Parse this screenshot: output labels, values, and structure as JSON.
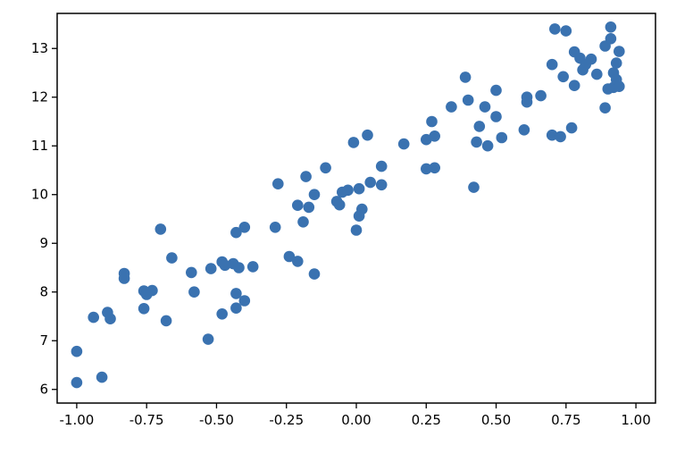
{
  "chart_data": {
    "type": "scatter",
    "title": "",
    "xlabel": "",
    "ylabel": "",
    "xlim": [
      -1.07,
      1.07
    ],
    "ylim": [
      5.72,
      13.72
    ],
    "grid": false,
    "legend": "none",
    "marker_color": "#3a72b0",
    "x_ticks": [
      -1.0,
      -0.75,
      -0.5,
      -0.25,
      0.0,
      0.25,
      0.5,
      0.75,
      1.0
    ],
    "x_tick_labels": [
      "-1.00",
      "-0.75",
      "-0.50",
      "-0.25",
      "0.00",
      "0.25",
      "0.50",
      "0.75",
      "1.00"
    ],
    "y_ticks": [
      6,
      7,
      8,
      9,
      10,
      11,
      12,
      13
    ],
    "y_tick_labels": [
      "6",
      "7",
      "8",
      "9",
      "10",
      "11",
      "12",
      "13"
    ],
    "series": [
      {
        "points": [
          [
            -1.0,
            6.78
          ],
          [
            -1.0,
            6.14
          ],
          [
            -0.91,
            6.25
          ],
          [
            -0.94,
            7.48
          ],
          [
            -0.89,
            7.58
          ],
          [
            -0.88,
            7.45
          ],
          [
            -0.83,
            8.38
          ],
          [
            -0.83,
            8.28
          ],
          [
            -0.76,
            8.02
          ],
          [
            -0.75,
            7.95
          ],
          [
            -0.73,
            8.03
          ],
          [
            -0.76,
            7.66
          ],
          [
            -0.7,
            9.29
          ],
          [
            -0.68,
            7.41
          ],
          [
            -0.66,
            8.7
          ],
          [
            -0.59,
            8.4
          ],
          [
            -0.58,
            8.0
          ],
          [
            -0.53,
            7.03
          ],
          [
            -0.52,
            8.48
          ],
          [
            -0.48,
            8.62
          ],
          [
            -0.47,
            8.55
          ],
          [
            -0.48,
            7.55
          ],
          [
            -0.44,
            8.58
          ],
          [
            -0.42,
            8.5
          ],
          [
            -0.43,
            9.22
          ],
          [
            -0.43,
            7.97
          ],
          [
            -0.43,
            7.67
          ],
          [
            -0.4,
            9.33
          ],
          [
            -0.4,
            7.82
          ],
          [
            -0.37,
            8.52
          ],
          [
            -0.29,
            9.33
          ],
          [
            -0.28,
            10.22
          ],
          [
            -0.24,
            8.73
          ],
          [
            -0.21,
            8.63
          ],
          [
            -0.21,
            9.78
          ],
          [
            -0.19,
            9.44
          ],
          [
            -0.18,
            10.37
          ],
          [
            -0.17,
            9.74
          ],
          [
            -0.15,
            8.37
          ],
          [
            -0.15,
            10.0
          ],
          [
            -0.11,
            10.55
          ],
          [
            -0.07,
            9.86
          ],
          [
            -0.05,
            10.05
          ],
          [
            -0.06,
            9.79
          ],
          [
            -0.03,
            10.09
          ],
          [
            -0.01,
            11.07
          ],
          [
            0.0,
            9.27
          ],
          [
            0.01,
            9.56
          ],
          [
            0.02,
            9.7
          ],
          [
            0.01,
            10.12
          ],
          [
            0.04,
            11.22
          ],
          [
            0.05,
            10.25
          ],
          [
            0.09,
            10.58
          ],
          [
            0.09,
            10.2
          ],
          [
            0.17,
            11.04
          ],
          [
            0.25,
            11.13
          ],
          [
            0.25,
            10.53
          ],
          [
            0.27,
            11.5
          ],
          [
            0.28,
            11.2
          ],
          [
            0.28,
            10.55
          ],
          [
            0.34,
            11.8
          ],
          [
            0.39,
            12.41
          ],
          [
            0.4,
            11.94
          ],
          [
            0.42,
            10.15
          ],
          [
            0.43,
            11.08
          ],
          [
            0.44,
            11.4
          ],
          [
            0.46,
            11.8
          ],
          [
            0.47,
            11.0
          ],
          [
            0.5,
            12.14
          ],
          [
            0.5,
            11.6
          ],
          [
            0.52,
            11.17
          ],
          [
            0.6,
            11.33
          ],
          [
            0.61,
            11.9
          ],
          [
            0.61,
            12.0
          ],
          [
            0.66,
            12.03
          ],
          [
            0.7,
            12.67
          ],
          [
            0.71,
            13.4
          ],
          [
            0.7,
            11.22
          ],
          [
            0.73,
            11.19
          ],
          [
            0.74,
            12.42
          ],
          [
            0.75,
            13.36
          ],
          [
            0.77,
            11.37
          ],
          [
            0.78,
            12.24
          ],
          [
            0.78,
            12.93
          ],
          [
            0.8,
            12.8
          ],
          [
            0.81,
            12.56
          ],
          [
            0.82,
            12.67
          ],
          [
            0.84,
            12.78
          ],
          [
            0.86,
            12.47
          ],
          [
            0.89,
            13.05
          ],
          [
            0.89,
            11.78
          ],
          [
            0.9,
            12.17
          ],
          [
            0.91,
            13.44
          ],
          [
            0.91,
            13.2
          ],
          [
            0.92,
            12.5
          ],
          [
            0.92,
            12.2
          ],
          [
            0.93,
            12.36
          ],
          [
            0.93,
            12.7
          ],
          [
            0.94,
            12.94
          ],
          [
            0.94,
            12.22
          ]
        ]
      }
    ]
  }
}
